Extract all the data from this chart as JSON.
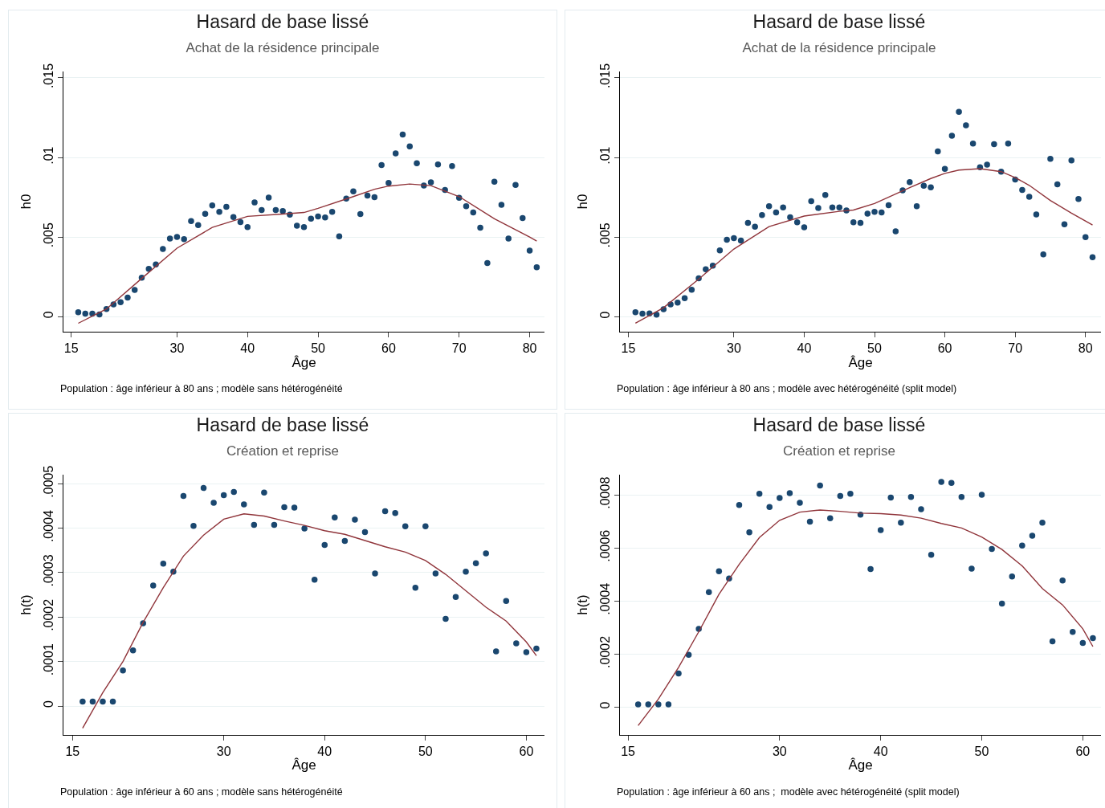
{
  "chart_data": [
    {
      "type": "scatter",
      "title": "Hasard de base lissé",
      "subtitle": "Achat de la résidence principale",
      "xlabel": "Âge",
      "ylabel": "h0",
      "annotations": [
        "Population : âge inférieur à 80 ans ; modèle sans hétérogénéité"
      ],
      "grid": "y",
      "marker": "circle",
      "xlim": [
        13.9,
        82.1
      ],
      "xticks": [
        15,
        30,
        40,
        50,
        60,
        70,
        80
      ],
      "ylim": [
        -0.00095,
        0.0154
      ],
      "yticks": [
        {
          "value": 0,
          "label": "0"
        },
        {
          "value": 0.005,
          "label": ".005"
        },
        {
          "value": 0.01,
          "label": ".01"
        },
        {
          "value": 0.015,
          "label": ".015"
        }
      ],
      "x": [
        16,
        17,
        18,
        19,
        20,
        21,
        22,
        23,
        24,
        25,
        26,
        27,
        28,
        29,
        30,
        31,
        32,
        33,
        34,
        35,
        36,
        37,
        38,
        39,
        40,
        41,
        42,
        43,
        44,
        45,
        46,
        47,
        48,
        49,
        50,
        51,
        52,
        53,
        54,
        55,
        56,
        57,
        58,
        59,
        60,
        61,
        62,
        63,
        64,
        65,
        66,
        67,
        68,
        69,
        70,
        71,
        72,
        73,
        74,
        75,
        76,
        77,
        78,
        79,
        80,
        81
      ],
      "series": [
        {
          "type": "scatter",
          "color": "#1a476f",
          "values": [
            0.00027,
            0.00019,
            0.00019,
            0.00013,
            0.00048,
            0.00077,
            0.0009,
            0.0012,
            0.00167,
            0.00244,
            0.003,
            0.00327,
            0.00425,
            0.0049,
            0.005,
            0.00487,
            0.006,
            0.00575,
            0.00646,
            0.00698,
            0.00658,
            0.0069,
            0.00625,
            0.00594,
            0.00562,
            0.00717,
            0.00669,
            0.00748,
            0.00669,
            0.00663,
            0.0064,
            0.00571,
            0.00562,
            0.00615,
            0.00629,
            0.00623,
            0.00658,
            0.00504,
            0.00742,
            0.00787,
            0.00644,
            0.0076,
            0.0075,
            0.00952,
            0.0084,
            0.01025,
            0.01144,
            0.01069,
            0.00963,
            0.00823,
            0.00844,
            0.00956,
            0.00796,
            0.00946,
            0.00746,
            0.00694,
            0.00654,
            0.00558,
            0.00337,
            0.00848,
            0.00702,
            0.0049,
            0.00827,
            0.00619,
            0.00415,
            0.0031
          ]
        },
        {
          "type": "line",
          "color": "#90353b",
          "marker": "none",
          "x": [
            16,
            20,
            25,
            30,
            35,
            40,
            45,
            48,
            50,
            55,
            58,
            60,
            63,
            66,
            70,
            75,
            80,
            81
          ],
          "values": [
            -0.00042,
            0.00048,
            0.0024,
            0.0043,
            0.0056,
            0.0063,
            0.00644,
            0.00654,
            0.0068,
            0.00754,
            0.008,
            0.0082,
            0.00833,
            0.00823,
            0.00754,
            0.00615,
            0.005,
            0.00475
          ]
        }
      ]
    },
    {
      "type": "scatter",
      "title": "Hasard de base lissé",
      "subtitle": "Achat de la résidence principale",
      "xlabel": "Âge",
      "ylabel": "h0",
      "annotations": [
        "Population : âge inférieur à 80 ans ; modèle avec hétérogénéité (split model)"
      ],
      "grid": "y",
      "marker": "circle",
      "xlim": [
        13.8,
        82.2
      ],
      "xticks": [
        15,
        30,
        40,
        50,
        60,
        70,
        80
      ],
      "ylim": [
        -0.00094,
        0.0154
      ],
      "yticks": [
        {
          "value": 0,
          "label": "0"
        },
        {
          "value": 0.005,
          "label": ".005"
        },
        {
          "value": 0.01,
          "label": ".01"
        },
        {
          "value": 0.015,
          "label": ".015"
        }
      ],
      "x": [
        16,
        17,
        18,
        19,
        20,
        21,
        22,
        23,
        24,
        25,
        26,
        27,
        28,
        29,
        30,
        31,
        32,
        33,
        34,
        35,
        36,
        37,
        38,
        39,
        40,
        41,
        42,
        43,
        44,
        45,
        46,
        47,
        48,
        49,
        50,
        51,
        52,
        53,
        54,
        55,
        56,
        57,
        58,
        59,
        60,
        61,
        62,
        63,
        64,
        65,
        66,
        67,
        68,
        69,
        70,
        71,
        72,
        73,
        74,
        75,
        76,
        77,
        78,
        79,
        80,
        81
      ],
      "series": [
        {
          "type": "scatter",
          "color": "#1a476f",
          "values": [
            0.00028,
            0.00019,
            0.00021,
            0.00013,
            0.00047,
            0.00077,
            0.00089,
            0.00117,
            0.0017,
            0.00242,
            0.00298,
            0.00321,
            0.00417,
            0.00483,
            0.00493,
            0.00479,
            0.00589,
            0.00566,
            0.00638,
            0.00694,
            0.00655,
            0.00687,
            0.00625,
            0.00593,
            0.00562,
            0.00726,
            0.00683,
            0.00764,
            0.00687,
            0.00687,
            0.00668,
            0.00593,
            0.00589,
            0.00647,
            0.00659,
            0.00655,
            0.007,
            0.00536,
            0.00793,
            0.00845,
            0.00694,
            0.00823,
            0.00813,
            0.01038,
            0.00928,
            0.01136,
            0.01287,
            0.01202,
            0.01087,
            0.00938,
            0.00955,
            0.01083,
            0.00911,
            0.01087,
            0.00862,
            0.00796,
            0.00753,
            0.00642,
            0.00391,
            0.00991,
            0.00832,
            0.00581,
            0.00981,
            0.0074,
            0.005,
            0.00374
          ]
        },
        {
          "type": "line",
          "color": "#90353b",
          "marker": "none",
          "x": [
            16,
            20,
            25,
            30,
            35,
            40,
            45,
            47,
            50,
            55,
            58,
            60,
            62,
            65,
            68,
            70,
            72,
            75,
            78,
            81
          ],
          "values": [
            -0.0004,
            0.00057,
            0.00236,
            0.00425,
            0.00566,
            0.00632,
            0.00662,
            0.0067,
            0.00711,
            0.00811,
            0.00868,
            0.009,
            0.00921,
            0.0093,
            0.00911,
            0.00874,
            0.00825,
            0.0073,
            0.00651,
            0.00576
          ]
        }
      ]
    },
    {
      "type": "scatter",
      "title": "Hasard de base lissé",
      "subtitle": "Création et reprise",
      "xlabel": "Âge",
      "ylabel": "h(t)",
      "annotations": [
        "Population : âge inférieur à 60 ans ; modèle sans hétérogénéité"
      ],
      "grid": "y",
      "marker": "circle",
      "xlim": [
        14.1,
        61.8
      ],
      "xticks": [
        15,
        30,
        40,
        50,
        60
      ],
      "ylim": [
        -6.5e-05,
        0.00052
      ],
      "yticks": [
        {
          "value": 0,
          "label": "0"
        },
        {
          "value": 0.0001,
          "label": ".0001"
        },
        {
          "value": 0.0002,
          "label": ".0002"
        },
        {
          "value": 0.0003,
          "label": ".0003"
        },
        {
          "value": 0.0004,
          "label": ".0004"
        },
        {
          "value": 0.0005,
          "label": ".0005"
        }
      ],
      "x": [
        16,
        17,
        18,
        19,
        20,
        21,
        22,
        23,
        24,
        25,
        26,
        27,
        28,
        29,
        30,
        31,
        32,
        33,
        34,
        35,
        36,
        37,
        38,
        39,
        40,
        41,
        42,
        43,
        44,
        45,
        46,
        47,
        48,
        49,
        50,
        51,
        52,
        53,
        54,
        55,
        56,
        57,
        58,
        59,
        60,
        61
      ],
      "series": [
        {
          "type": "scatter",
          "color": "#1a476f",
          "values": [
            1e-05,
            1e-05,
            1e-05,
            1e-05,
            8e-05,
            0.000125,
            0.000186,
            0.000271,
            0.00032,
            0.000302,
            0.000472,
            0.000405,
            0.00049,
            0.000457,
            0.000474,
            0.000481,
            0.000453,
            0.000407,
            0.00048,
            0.000407,
            0.000447,
            0.000446,
            0.000399,
            0.000284,
            0.000362,
            0.000424,
            0.000371,
            0.000419,
            0.000391,
            0.000298,
            0.000438,
            0.000434,
            0.000404,
            0.000266,
            0.000404,
            0.000298,
            0.000196,
            0.000245,
            0.000302,
            0.000321,
            0.000343,
            0.000123,
            0.000236,
            0.000141,
            0.000121,
            0.000129
          ]
        },
        {
          "type": "line",
          "color": "#90353b",
          "marker": "none",
          "x": [
            16,
            18,
            20,
            22,
            24,
            26,
            28,
            30,
            32,
            34,
            36,
            38,
            40,
            42,
            44,
            46,
            48,
            50,
            52,
            54,
            56,
            58,
            60,
            61
          ],
          "values": [
            -5e-05,
            3e-05,
            0.0001,
            0.000188,
            0.000266,
            0.000337,
            0.000384,
            0.00042,
            0.000432,
            0.000427,
            0.000416,
            0.000406,
            0.000394,
            0.000386,
            0.000372,
            0.000358,
            0.000346,
            0.000327,
            0.000296,
            0.000259,
            0.000222,
            0.000191,
            0.000144,
            0.000113
          ]
        }
      ]
    },
    {
      "type": "scatter",
      "title": "Hasard de base lissé",
      "subtitle": "Création et reprise",
      "xlabel": "Âge",
      "ylabel": "h(t)",
      "annotations": [
        "Population : âge inférieur à 60 ans ;  modèle avec hétérogénéité (split model)"
      ],
      "grid": "y",
      "marker": "circle",
      "xlim": [
        14.2,
        61.8
      ],
      "xticks": [
        15,
        30,
        40,
        50,
        60
      ],
      "ylim": [
        -0.000105,
        0.000876
      ],
      "yticks": [
        {
          "value": 0,
          "label": "0"
        },
        {
          "value": 0.0002,
          "label": ".0002"
        },
        {
          "value": 0.0004,
          "label": ".0004"
        },
        {
          "value": 0.0006,
          "label": ".0006"
        },
        {
          "value": 0.0008,
          "label": ".0008"
        }
      ],
      "x": [
        16,
        17,
        18,
        19,
        20,
        21,
        22,
        23,
        24,
        25,
        26,
        27,
        28,
        29,
        30,
        31,
        32,
        33,
        34,
        35,
        36,
        37,
        38,
        39,
        40,
        41,
        42,
        43,
        44,
        45,
        46,
        47,
        48,
        49,
        50,
        51,
        52,
        53,
        54,
        55,
        56,
        57,
        58,
        59,
        60,
        61
      ],
      "series": [
        {
          "type": "scatter",
          "color": "#1a476f",
          "values": [
            1e-05,
            1e-05,
            1e-05,
            1e-05,
            0.000127,
            0.000197,
            0.000295,
            0.000433,
            0.000512,
            0.000485,
            0.000762,
            0.000659,
            0.000804,
            0.000754,
            0.000788,
            0.000806,
            0.00077,
            0.000699,
            0.000835,
            0.000712,
            0.000796,
            0.000804,
            0.000725,
            0.00052,
            0.000667,
            0.00079,
            0.000695,
            0.000792,
            0.000746,
            0.000574,
            0.000849,
            0.000845,
            0.000792,
            0.000522,
            0.0008,
            0.000596,
            0.00039,
            0.000492,
            0.000609,
            0.000646,
            0.000695,
            0.000248,
            0.000477,
            0.000283,
            0.000242,
            0.00026
          ]
        },
        {
          "type": "line",
          "color": "#90353b",
          "marker": "none",
          "x": [
            16,
            18,
            20,
            22,
            24,
            26,
            28,
            30,
            32,
            34,
            36,
            38,
            40,
            42,
            44,
            46,
            48,
            50,
            52,
            54,
            56,
            58,
            60,
            61
          ],
          "values": [
            -7e-05,
            3e-05,
            0.00015,
            0.000284,
            0.000425,
            0.000538,
            0.000639,
            0.000704,
            0.000735,
            0.000743,
            0.000738,
            0.000731,
            0.000729,
            0.000724,
            0.000712,
            0.000692,
            0.000675,
            0.000641,
            0.000594,
            0.000532,
            0.000447,
            0.000385,
            0.000295,
            0.000228
          ]
        }
      ]
    }
  ]
}
